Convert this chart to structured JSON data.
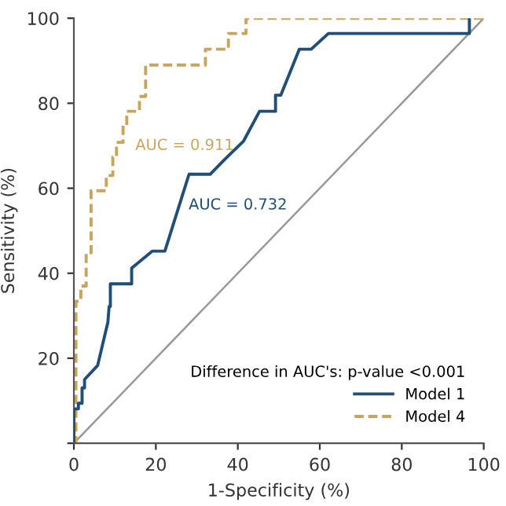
{
  "chart_data": {
    "type": "line",
    "xlabel": "1-Specificity (%)",
    "ylabel": "Sensitivity (%)",
    "xlim": [
      0,
      100
    ],
    "ylim": [
      0,
      100
    ],
    "xticks": [
      0,
      20,
      40,
      60,
      80,
      100
    ],
    "yticks": [
      {
        "value": 0,
        "label": null
      },
      20,
      40,
      60,
      80,
      100
    ],
    "grid": false,
    "legend": "bottom right",
    "legend_title": "Difference in AUC's: p-value <0.001",
    "series": [
      {
        "name": "Model 1",
        "color": "#1f4e79",
        "line_style": "solid",
        "x": [
          0,
          0,
          1.1,
          1.1,
          2,
          2,
          2.6,
          2.6,
          5.8,
          8.3,
          8.6,
          8.9,
          8.9,
          14.1,
          14.1,
          19.1,
          22.2,
          28.1,
          33.3,
          36.8,
          41.4,
          45.3,
          49.2,
          49.2,
          50.5,
          55,
          57.9,
          62.1,
          96.5,
          96.5
        ],
        "values": [
          0,
          8.1,
          8.1,
          9.4,
          9.4,
          13,
          13,
          15,
          18.3,
          28.5,
          32.2,
          32.2,
          37.5,
          37.5,
          41.2,
          45.2,
          45.2,
          63.3,
          63.3,
          66.8,
          71.1,
          78.1,
          78.1,
          81.9,
          81.9,
          92.7,
          92.7,
          96.4,
          96.4,
          100
        ]
      },
      {
        "name": "Model 4",
        "color": "#c9a55c",
        "line_style": "dashed",
        "x": [
          0,
          0.5,
          0.5,
          1.7,
          1.7,
          3,
          3,
          4.2,
          4.2,
          7.9,
          7.9,
          9.5,
          9.5,
          10.4,
          10.4,
          12,
          12,
          12.9,
          12.9,
          16,
          16,
          17.5,
          17.5,
          32.1,
          32.1,
          37.7,
          37.7,
          42,
          42,
          100
        ],
        "values": [
          0,
          0,
          33.4,
          33.4,
          37,
          37,
          44.8,
          44.8,
          59.4,
          59.4,
          63,
          63,
          67.4,
          67.4,
          70.8,
          70.8,
          74.8,
          74.8,
          78.1,
          78.1,
          81.6,
          81.6,
          89,
          89,
          92.7,
          92.7,
          96.4,
          96.4,
          100,
          100
        ]
      },
      {
        "color": "#999999",
        "line_style": "solid",
        "x": [
          0,
          100
        ],
        "values": [
          0,
          100
        ]
      }
    ],
    "annotations": [
      "AUC = 0.911",
      "AUC = 0.732"
    ]
  }
}
